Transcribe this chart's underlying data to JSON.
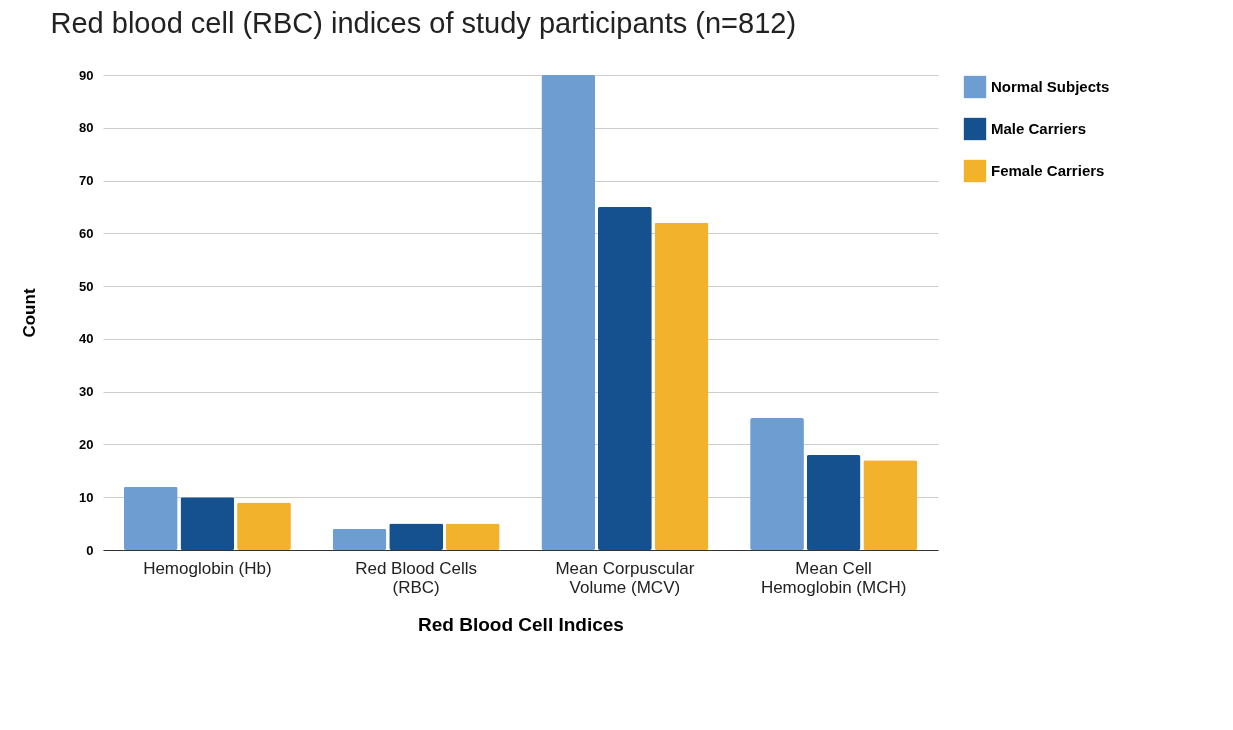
{
  "chart_data": {
    "type": "bar",
    "title": "Red blood cell (RBC) indices of study participants (n=812)",
    "xlabel": "Red Blood Cell Indices",
    "ylabel": "Count",
    "categories": [
      "Hemoglobin (Hb)",
      "Red Blood Cells (RBC)",
      "Mean Corpuscular Volume (MCV)",
      "Mean Cell Hemoglobin (MCH)"
    ],
    "series": [
      {
        "name": "Normal Subjects",
        "color": "#6d9dd1",
        "values": [
          12,
          4,
          90,
          25
        ]
      },
      {
        "name": "Male Carriers",
        "color": "#15508f",
        "values": [
          10,
          5,
          65,
          18
        ]
      },
      {
        "name": "Female Carriers",
        "color": "#f2b22b",
        "values": [
          9,
          5,
          62,
          17
        ]
      }
    ],
    "ylim": [
      0,
      90
    ],
    "yticks": [
      0,
      10,
      20,
      30,
      40,
      50,
      60,
      70,
      80,
      90
    ],
    "grid": "y",
    "legend": "top right"
  }
}
